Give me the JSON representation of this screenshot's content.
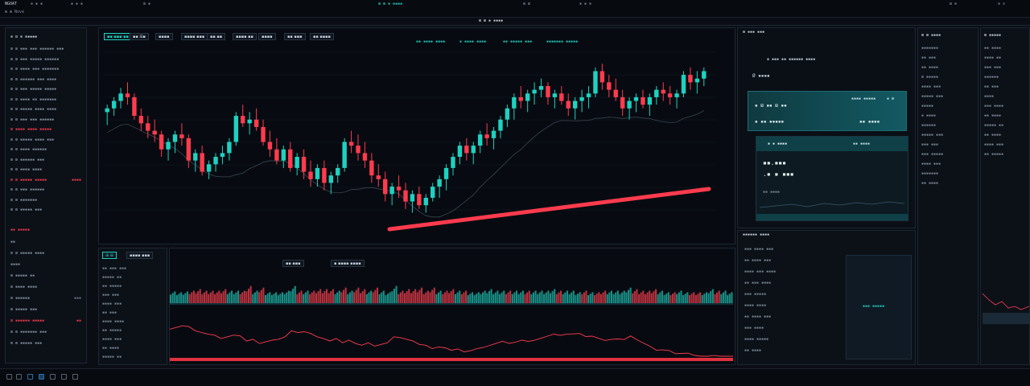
{
  "topbar": {
    "left": [
      "NGOAT",
      "⊕ ▪ ▪",
      "▪ ▪ ▪",
      "⊞ ▪"
    ],
    "center": "⊞ ⊞ ▪ ▪▪▪▪",
    "right": [
      "⊞ ⊞",
      "▪ ▪ ⊕",
      "⊞ ⊕",
      "⊕ ⊙"
    ],
    "sub": "⊞ ⊞ Nove"
  },
  "watchlist": {
    "header": "⊕ ⊟ ⊕ ⊕▪▪▪▪",
    "rows": [
      {
        "k": "⊞ ⊞ ▪▪▪ ▪▪▪ ▪▪▪▪▪▪ ▪▪▪",
        "v": "",
        "c": ""
      },
      {
        "k": "⊞ ⊞ ▪▪▪ ▪▪▪▪▪ ▪▪▪▪▪▪",
        "v": "",
        "c": ""
      },
      {
        "k": "⊞ ⊞ ▪▪▪▪ ▪▪▪ ▪▪▪▪▪▪▪",
        "v": "",
        "c": ""
      },
      {
        "k": "⊞ ⊞ ▪▪▪▪▪▪ ▪▪▪ ▪▪▪▪",
        "v": "",
        "c": ""
      },
      {
        "k": "⊞ ⊞ ▪▪▪ ▪▪▪▪▪ ▪▪▪▪▪",
        "v": "",
        "c": ""
      },
      {
        "k": "⊞ ⊞ ▪▪▪▪ ▪▪ ▪▪▪▪▪▪▪",
        "v": "",
        "c": ""
      },
      {
        "k": "⊞ ⊞ ▪▪▪▪▪ ▪▪▪▪ ▪▪▪▪",
        "v": "",
        "c": ""
      },
      {
        "k": "⊞ ⊞ ▪▪▪ ▪▪▪ ▪▪▪▪▪▪",
        "v": "",
        "c": ""
      },
      {
        "k": "⊞ ▪▪▪▪ ▪▪▪▪ ▪▪▪▪▪",
        "v": "",
        "c": "red"
      },
      {
        "k": "⊞ ⊞ ▪▪▪▪▪ ▪▪▪▪ ▪▪▪",
        "v": "",
        "c": ""
      },
      {
        "k": "⊞ ⊞ ▪▪▪▪ ▪▪▪▪▪▪",
        "v": "",
        "c": ""
      },
      {
        "k": "⊞ ⊞ ▪▪▪▪▪▪ ▪▪▪",
        "v": "",
        "c": ""
      },
      {
        "k": "⊞ ⊞ ▪▪▪▪ ▪▪▪▪",
        "v": "",
        "c": ""
      },
      {
        "k": "⊞ ⊞ ▪▪▪▪▪ ▪▪▪▪▪",
        "v": "▪▪▪▪",
        "c": "red"
      },
      {
        "k": "⊞ ⊞ ▪▪▪ ▪▪▪▪▪▪",
        "v": "",
        "c": ""
      },
      {
        "k": "⊞ ⊞ ▪▪▪▪▪▪▪",
        "v": "",
        "c": ""
      },
      {
        "k": "⊞ ⊞ ▪▪▪▪▪ ▪▪▪",
        "v": "",
        "c": ""
      }
    ],
    "section2": "▪▪ ▪▪▪▪▪",
    "rows2": [
      {
        "k": "▪▪",
        "v": "",
        "c": ""
      },
      {
        "k": "⊞ ⊞ ▪▪▪▪▪ ▪▪▪▪",
        "v": "",
        "c": ""
      },
      {
        "k": "▪▪▪▪",
        "v": "",
        "c": ""
      },
      {
        "k": "⊞ ▪▪▪▪▪ ▪▪",
        "v": "",
        "c": ""
      },
      {
        "k": "⊞ ▪▪▪▪ ▪▪▪▪",
        "v": "",
        "c": ""
      },
      {
        "k": "⊞ ▪▪▪▪▪▪",
        "v": "▪▪▪",
        "c": ""
      },
      {
        "k": "⊞ ▪▪▪▪▪ ▪▪▪",
        "v": "",
        "c": ""
      },
      {
        "k": "⊞ ▪▪▪▪▪▪ ▪▪▪▪▪",
        "v": "▪▪",
        "c": "red"
      },
      {
        "k": "⊞ ⊞ ▪▪▪▪▪▪▪ ▪▪▪",
        "v": "",
        "c": ""
      },
      {
        "k": "⊞ ⊞ ▪▪▪▪▪ ▪▪▪",
        "v": "",
        "c": ""
      }
    ]
  },
  "chart_toolbar": {
    "items": [
      "▪▪ ▪▪▪ ▪▪",
      "▪▪ ⊞▪",
      "▪▪▪▪",
      "▪▪▪▪ ▪▪▪",
      "▪▪ ▪▪",
      "▪▪▪▪ ▪▪",
      "▪▪▪▪",
      "▪▪ ▪▪▪",
      "▪▪ ▪▪▪▪"
    ],
    "info": [
      "▪▪ ▪▪▪▪ ▪▪▪▪",
      "▪ ▪▪▪▪ ▪▪▪▪",
      "▪▪ ▪▪▪▪▪ ▪▪▪",
      "▪▪▪▪▪▪▪ ▪▪▪▪▪"
    ]
  },
  "chart_data": {
    "type": "candlestick",
    "candles": [
      [
        62,
        66,
        55,
        64
      ],
      [
        64,
        70,
        60,
        68
      ],
      [
        68,
        75,
        64,
        72
      ],
      [
        72,
        78,
        66,
        70
      ],
      [
        70,
        72,
        58,
        60
      ],
      [
        60,
        64,
        52,
        56
      ],
      [
        56,
        60,
        48,
        52
      ],
      [
        52,
        58,
        46,
        50
      ],
      [
        50,
        52,
        38,
        42
      ],
      [
        42,
        48,
        36,
        46
      ],
      [
        46,
        52,
        40,
        50
      ],
      [
        50,
        56,
        44,
        48
      ],
      [
        48,
        50,
        32,
        36
      ],
      [
        36,
        42,
        30,
        40
      ],
      [
        40,
        44,
        28,
        30
      ],
      [
        30,
        36,
        26,
        34
      ],
      [
        34,
        40,
        30,
        38
      ],
      [
        38,
        44,
        34,
        40
      ],
      [
        40,
        48,
        36,
        46
      ],
      [
        46,
        62,
        44,
        60
      ],
      [
        60,
        66,
        54,
        56
      ],
      [
        56,
        62,
        50,
        58
      ],
      [
        58,
        64,
        52,
        54
      ],
      [
        54,
        58,
        44,
        46
      ],
      [
        46,
        52,
        38,
        42
      ],
      [
        42,
        48,
        34,
        36
      ],
      [
        36,
        44,
        32,
        42
      ],
      [
        42,
        46,
        30,
        32
      ],
      [
        32,
        40,
        28,
        38
      ],
      [
        38,
        42,
        26,
        30
      ],
      [
        30,
        36,
        22,
        26
      ],
      [
        26,
        34,
        22,
        32
      ],
      [
        32,
        36,
        20,
        24
      ],
      [
        24,
        30,
        18,
        28
      ],
      [
        28,
        34,
        24,
        32
      ],
      [
        32,
        48,
        30,
        46
      ],
      [
        46,
        52,
        40,
        44
      ],
      [
        44,
        50,
        36,
        40
      ],
      [
        40,
        46,
        32,
        36
      ],
      [
        36,
        40,
        24,
        28
      ],
      [
        28,
        34,
        22,
        26
      ],
      [
        26,
        30,
        14,
        18
      ],
      [
        18,
        24,
        12,
        22
      ],
      [
        22,
        28,
        16,
        20
      ],
      [
        20,
        24,
        10,
        14
      ],
      [
        14,
        20,
        8,
        18
      ],
      [
        18,
        22,
        10,
        12
      ],
      [
        12,
        18,
        8,
        16
      ],
      [
        16,
        24,
        14,
        22
      ],
      [
        22,
        28,
        16,
        26
      ],
      [
        26,
        34,
        20,
        32
      ],
      [
        32,
        40,
        28,
        38
      ],
      [
        38,
        46,
        34,
        44
      ],
      [
        44,
        48,
        36,
        40
      ],
      [
        40,
        46,
        34,
        44
      ],
      [
        44,
        52,
        40,
        50
      ],
      [
        50,
        56,
        44,
        48
      ],
      [
        48,
        54,
        42,
        52
      ],
      [
        52,
        60,
        48,
        58
      ],
      [
        58,
        66,
        54,
        64
      ],
      [
        64,
        72,
        58,
        70
      ],
      [
        70,
        76,
        64,
        68
      ],
      [
        68,
        74,
        62,
        72
      ],
      [
        72,
        78,
        66,
        74
      ],
      [
        74,
        80,
        70,
        76
      ],
      [
        76,
        78,
        66,
        70
      ],
      [
        70,
        74,
        64,
        72
      ],
      [
        72,
        76,
        66,
        68
      ],
      [
        68,
        72,
        60,
        64
      ],
      [
        64,
        70,
        58,
        68
      ],
      [
        68,
        74,
        62,
        70
      ],
      [
        70,
        76,
        64,
        72
      ],
      [
        72,
        86,
        70,
        84
      ],
      [
        84,
        88,
        74,
        78
      ],
      [
        78,
        82,
        70,
        74
      ],
      [
        74,
        80,
        68,
        70
      ],
      [
        70,
        74,
        60,
        64
      ],
      [
        64,
        70,
        58,
        68
      ],
      [
        68,
        72,
        62,
        70
      ],
      [
        70,
        74,
        64,
        66
      ],
      [
        66,
        72,
        60,
        70
      ],
      [
        70,
        76,
        66,
        74
      ],
      [
        74,
        78,
        68,
        72
      ],
      [
        72,
        76,
        66,
        70
      ],
      [
        70,
        74,
        64,
        72
      ],
      [
        72,
        84,
        70,
        82
      ],
      [
        82,
        86,
        74,
        78
      ],
      [
        78,
        84,
        72,
        80
      ],
      [
        80,
        86,
        76,
        84
      ]
    ],
    "ylim": [
      0,
      95
    ]
  },
  "right_panel": {
    "title": "⊞ ▪▪▪ ▪▪▪",
    "sub": "▪ ▪▪▪ ▪▪ ▪▪▪▪▪▪ ▪▪▪▪",
    "logo": "Ø ▪▪▪▪",
    "card1": {
      "a": "▪ ⊞ ▪▪ ⊞ ▪▪",
      "b": "▪▪▪▪ ▪▪▪▪▪",
      "c": "▪ ⊞",
      "d": "▪ ▪▪ ▪▪▪▪▪",
      "e": "▪▪ ▪▪▪▪"
    },
    "card2": {
      "a": "▪ ▪ ▪▪▪▪",
      "b": "▪▪ ▪▪▪▪",
      "c": "▪▪.▪▪▪",
      "d": ".▪ ▪ ▪▪▪",
      "e": "▪▪ ▪▪▪▪"
    },
    "footer": [
      "▪▪ ▪▪▪▪▪",
      "▪▪ ▪▪▪ ▪▪▪▪",
      "▪▪▪▪▪ ▪▪▪▪"
    ]
  },
  "far_right": {
    "title": "⊞ ⊞ ▪▪▪▪",
    "rows": [
      "▪▪▪▪▪▪▪",
      "▪▪ ▪▪▪",
      "▪▪ ▪▪▪▪",
      "⊞ ▪▪▪▪▪",
      "▪▪▪▪ ▪▪▪",
      "▪▪▪▪▪ ▪▪▪",
      "▪▪▪▪▪",
      "▪ ▪▪▪▪",
      "▪▪▪▪▪▪",
      "▪▪▪▪▪ ▪▪▪",
      "▪▪▪ ▪▪▪",
      "▪▪▪ ▪▪▪▪▪",
      "▪▪▪▪ ▪▪▪",
      "▪▪▪▪▪▪▪",
      "▪▪ ▪▪▪▪"
    ]
  },
  "edge_panel": {
    "title": "⊞ ▪▪▪▪▪",
    "rows": [
      "▪▪ ▪▪▪▪",
      "▪▪▪▪ ▪▪",
      "▪▪▪ ▪▪▪",
      "▪▪▪▪▪▪",
      "▪▪ ▪▪▪",
      "▪▪▪▪",
      "▪▪▪ ▪▪▪▪",
      "▪▪ ▪▪▪▪",
      "▪▪▪▪▪ ▪▪",
      "▪▪ ▪▪▪▪",
      "▪▪▪▪ ▪▪▪",
      "▪▪ ▪▪▪▪▪"
    ]
  },
  "bottom_panel": {
    "tabs": [
      "⊞ ⊞",
      "▪▪▪▪ ▪▪▪",
      "▪▪ ▪▪▪",
      "▪ ▪▪▪▪ ▪▪▪▪"
    ],
    "list": [
      "▪▪ ▪▪▪ ▪▪▪",
      "▪▪▪▪▪ ▪▪",
      "▪▪ ▪▪▪▪▪",
      "▪▪▪ ▪▪▪",
      "▪▪▪▪ ▪▪▪",
      "▪▪ ▪▪▪",
      "▪▪▪▪ ▪▪▪▪",
      "▪▪ ▪▪▪▪▪",
      "▪▪▪▪ ▪▪▪",
      "▪▪ ▪▪▪▪",
      "▪▪▪▪▪ ▪▪"
    ]
  },
  "orders": {
    "title": "▪▪▪▪▪▪ ▪▪▪▪",
    "rows": [
      "▪▪▪ ▪▪▪▪ ▪▪▪",
      "▪▪ ▪▪▪▪ ▪▪▪",
      "▪▪▪▪ ▪▪▪ ▪▪▪▪",
      "▪▪ ▪▪▪ ▪▪▪▪",
      "▪▪▪ ▪▪▪▪▪",
      "▪▪▪▪ ▪▪▪▪",
      "▪▪ ▪▪▪▪ ▪▪▪",
      "▪▪▪ ▪▪▪▪",
      "▪▪▪▪ ▪▪▪▪▪",
      "▪▪ ▪▪▪▪"
    ]
  },
  "colors": {
    "up": "#1fd1c0",
    "down": "#ff3b4e",
    "bg": "#0a0e14"
  }
}
